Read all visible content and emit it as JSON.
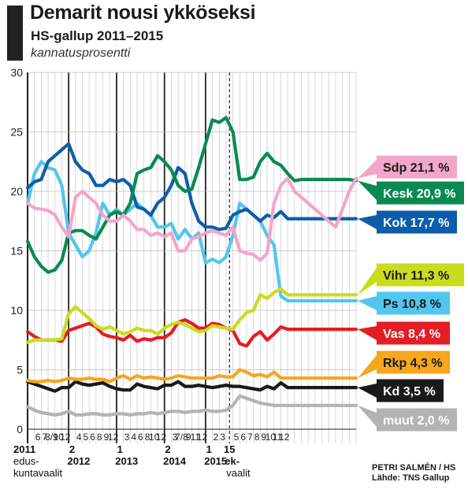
{
  "header": {
    "title": "Demarit nousi ykköseksi",
    "subtitle": "HS-gallup 2011–2015",
    "unit": "kannatusprosentti"
  },
  "credit": {
    "author": "PETRI SALMÉN / HS",
    "source": "Lähde: TNS Gallup"
  },
  "chart_data": {
    "type": "line",
    "title": "Demarit nousi ykköseksi",
    "subtitle": "HS-gallup 2011–2015",
    "ylabel": "kannatusprosentti",
    "ylim": [
      0,
      30
    ],
    "yticks": [
      0,
      5,
      10,
      15,
      20,
      25,
      30
    ],
    "grid": true,
    "legend": "right",
    "x_count": 49,
    "month_labels": [
      {
        "i": 1,
        "t": "6"
      },
      {
        "i": 2,
        "t": "7"
      },
      {
        "i": 3,
        "t": "8/9"
      },
      {
        "i": 4,
        "t": "10"
      },
      {
        "i": 5,
        "t": "12"
      },
      {
        "i": 7,
        "t": "4"
      },
      {
        "i": 8,
        "t": "5"
      },
      {
        "i": 9,
        "t": "6"
      },
      {
        "i": 10,
        "t": "8"
      },
      {
        "i": 11,
        "t": "9"
      },
      {
        "i": 12,
        "t": "12"
      },
      {
        "i": 14,
        "t": "3"
      },
      {
        "i": 15,
        "t": "4"
      },
      {
        "i": 16,
        "t": "6"
      },
      {
        "i": 17,
        "t": "8"
      },
      {
        "i": 18,
        "t": "10"
      },
      {
        "i": 19,
        "t": "12"
      },
      {
        "i": 21,
        "t": "3"
      },
      {
        "i": 22,
        "t": "7/8"
      },
      {
        "i": 23,
        "t": "9"
      },
      {
        "i": 24,
        "t": "11"
      },
      {
        "i": 25,
        "t": "12"
      },
      {
        "i": 27,
        "t": "2"
      },
      {
        "i": 28,
        "t": "3"
      },
      {
        "i": 30,
        "t": "5"
      },
      {
        "i": 31,
        "t": "6"
      },
      {
        "i": 32,
        "t": "7"
      },
      {
        "i": 33,
        "t": "8"
      },
      {
        "i": 34,
        "t": "9"
      },
      {
        "i": 35,
        "t": "10"
      },
      {
        "i": 36,
        "t": "11"
      },
      {
        "i": 37,
        "t": "12"
      }
    ],
    "years": [
      {
        "i": 0,
        "t": "2011",
        "sub": "2011",
        "note1": "edus-",
        "note2": "kuntavaalit",
        "bold": true
      },
      {
        "i": 6,
        "t": "2",
        "sub": "2012",
        "bold": true
      },
      {
        "i": 13,
        "t": "1",
        "sub": "2013",
        "bold": true
      },
      {
        "i": 20,
        "t": "2",
        "sub": "2014",
        "bold": true
      },
      {
        "i": 26,
        "t": "1",
        "sub": "2015",
        "bold": true
      },
      {
        "i": 29,
        "t": "15",
        "sub": "ek-",
        "note1": "vaalit",
        "bold": true
      }
    ],
    "election_line_index": 29.5,
    "series": [
      {
        "name": "Sdp",
        "label": "Sdp 21,1 %",
        "color": "#f2a6c9",
        "text_color": "#1a1a1a",
        "values": [
          19.0,
          18.6,
          18.5,
          18.4,
          18.0,
          17.0,
          16.2,
          19.5,
          20.0,
          19.5,
          19.0,
          18.0,
          17.5,
          17.5,
          18.0,
          17.5,
          16.8,
          16.8,
          16.3,
          16.5,
          16.2,
          16.5,
          15.0,
          15.0,
          16.0,
          16.2,
          16.5,
          16.7,
          16.5,
          16.3,
          17.0,
          15.0,
          14.8,
          14.7,
          14.2,
          14.8,
          19.0,
          20.5,
          21.1,
          20.0,
          19.5,
          19.0,
          18.5,
          18.0,
          17.5,
          17.0,
          18.5,
          20.0,
          21.1
        ]
      },
      {
        "name": "Kesk",
        "label": "Kesk 20,9 %",
        "color": "#0a8a52",
        "text_color": "#ffffff",
        "values": [
          15.8,
          14.5,
          13.7,
          13.2,
          13.4,
          14.2,
          16.5,
          16.7,
          16.7,
          16.3,
          16.0,
          17.0,
          18.0,
          18.3,
          18.0,
          19.0,
          21.5,
          21.8,
          22.0,
          23.0,
          22.5,
          21.8,
          20.5,
          20.0,
          20.2,
          22.0,
          24.0,
          26.0,
          25.8,
          26.2,
          25.0,
          21.0,
          21.0,
          21.2,
          22.5,
          23.2,
          22.5,
          22.2,
          21.5,
          20.9,
          21.0,
          21.0,
          21.0,
          21.0,
          21.0,
          21.0,
          21.0,
          21.0,
          20.9
        ]
      },
      {
        "name": "Kok",
        "label": "Kok 17,7 %",
        "color": "#0d5eaa",
        "text_color": "#ffffff",
        "values": [
          20.3,
          20.8,
          21.0,
          22.5,
          23.0,
          23.5,
          24.0,
          22.5,
          21.8,
          21.5,
          20.5,
          20.5,
          21.0,
          20.8,
          21.0,
          20.5,
          18.7,
          18.5,
          18.0,
          19.0,
          19.5,
          20.5,
          22.0,
          21.5,
          19.0,
          17.5,
          17.0,
          17.0,
          16.8,
          16.9,
          18.0,
          18.3,
          18.5,
          18.0,
          17.5,
          18.0,
          17.8,
          18.3,
          17.7,
          17.7,
          17.7,
          17.7,
          17.7,
          17.7,
          17.7,
          17.7,
          17.7,
          17.7,
          17.7
        ]
      },
      {
        "name": "Vihr",
        "label": "Vihr 11,3 %",
        "color": "#c9dc1e",
        "text_color": "#1a1a1a",
        "values": [
          7.3,
          7.5,
          7.5,
          7.5,
          7.5,
          7.6,
          9.7,
          10.3,
          9.8,
          9.3,
          8.7,
          8.4,
          8.6,
          8.3,
          8.0,
          8.2,
          8.5,
          8.3,
          8.3,
          8.0,
          8.5,
          8.8,
          9.0,
          8.8,
          8.5,
          8.2,
          8.3,
          8.7,
          8.6,
          8.5,
          8.4,
          9.2,
          9.8,
          10.0,
          11.3,
          11.0,
          11.5,
          11.8,
          11.3,
          11.3,
          11.3,
          11.3,
          11.3,
          11.3,
          11.3,
          11.3,
          11.3,
          11.3,
          11.3
        ]
      },
      {
        "name": "Ps",
        "label": "Ps 10,8 %",
        "color": "#52c6ee",
        "text_color": "#1a1a1a",
        "values": [
          19.0,
          21.5,
          22.5,
          22.0,
          21.8,
          20.5,
          16.5,
          15.5,
          14.5,
          15.0,
          16.5,
          19.0,
          18.0,
          18.5,
          18.0,
          18.5,
          19.0,
          18.5,
          18.0,
          17.0,
          17.0,
          17.3,
          16.0,
          16.8,
          16.0,
          16.5,
          14.0,
          14.3,
          14.0,
          14.5,
          16.3,
          19.0,
          18.5,
          18.0,
          17.5,
          16.3,
          15.5,
          11.2,
          10.8,
          10.8,
          10.8,
          10.8,
          10.8,
          10.8,
          10.8,
          10.8,
          10.8,
          10.8,
          10.8
        ]
      },
      {
        "name": "Vas",
        "label": "Vas 8,4 %",
        "color": "#e31e25",
        "text_color": "#ffffff",
        "values": [
          8.2,
          7.8,
          7.5,
          7.5,
          7.5,
          7.4,
          8.3,
          8.5,
          8.7,
          8.9,
          8.6,
          8.0,
          7.8,
          7.7,
          7.5,
          7.9,
          7.4,
          7.6,
          7.5,
          7.7,
          7.7,
          8.1,
          9.0,
          9.2,
          8.9,
          8.5,
          8.5,
          8.9,
          8.8,
          8.5,
          8.3,
          7.2,
          7.0,
          7.8,
          8.2,
          7.5,
          8.0,
          8.6,
          8.4,
          8.4,
          8.4,
          8.4,
          8.4,
          8.4,
          8.4,
          8.4,
          8.4,
          8.4,
          8.4
        ]
      },
      {
        "name": "Rkp",
        "label": "Rkp 4,3 %",
        "color": "#f5a71d",
        "text_color": "#1a1a1a",
        "values": [
          4.1,
          4.0,
          4.0,
          4.1,
          4.0,
          4.1,
          4.3,
          4.2,
          4.2,
          4.3,
          4.2,
          4.2,
          4.0,
          4.3,
          4.5,
          4.2,
          4.5,
          4.3,
          4.4,
          4.3,
          4.2,
          4.3,
          4.5,
          4.4,
          4.3,
          4.3,
          4.3,
          4.3,
          4.5,
          4.4,
          4.4,
          5.0,
          4.8,
          4.5,
          4.6,
          4.4,
          4.8,
          4.3,
          4.3,
          4.3,
          4.3,
          4.3,
          4.3,
          4.3,
          4.3,
          4.3,
          4.3,
          4.3,
          4.3
        ]
      },
      {
        "name": "Kd",
        "label": "Kd 3,5 %",
        "color": "#1a1a1a",
        "text_color": "#ffffff",
        "values": [
          4.0,
          3.8,
          3.6,
          3.4,
          3.2,
          3.5,
          3.5,
          4.0,
          3.8,
          3.7,
          3.8,
          3.9,
          3.6,
          3.4,
          3.3,
          3.3,
          3.8,
          3.6,
          3.5,
          3.4,
          3.7,
          3.7,
          4.0,
          3.6,
          3.6,
          3.7,
          3.6,
          3.5,
          3.6,
          3.7,
          3.6,
          3.6,
          3.5,
          3.4,
          3.3,
          3.6,
          3.4,
          3.9,
          3.5,
          3.5,
          3.5,
          3.5,
          3.5,
          3.5,
          3.5,
          3.5,
          3.5,
          3.5,
          3.5
        ]
      },
      {
        "name": "muut",
        "label": "muut 2,0 %",
        "color": "#b3b3b3",
        "text_color": "#ffffff",
        "values": [
          1.9,
          1.6,
          1.4,
          1.3,
          1.2,
          1.3,
          1.5,
          1.2,
          1.2,
          1.3,
          1.3,
          1.2,
          1.2,
          1.3,
          1.3,
          1.2,
          1.3,
          1.3,
          1.4,
          1.3,
          1.4,
          1.5,
          1.5,
          1.4,
          1.5,
          1.5,
          1.6,
          1.5,
          1.5,
          1.6,
          2.0,
          2.8,
          2.6,
          2.4,
          2.2,
          2.1,
          2.0,
          2.0,
          2.0,
          2.0,
          2.0,
          2.0,
          2.0,
          2.0,
          2.0,
          2.0,
          2.0,
          2.0,
          2.0
        ]
      }
    ]
  }
}
